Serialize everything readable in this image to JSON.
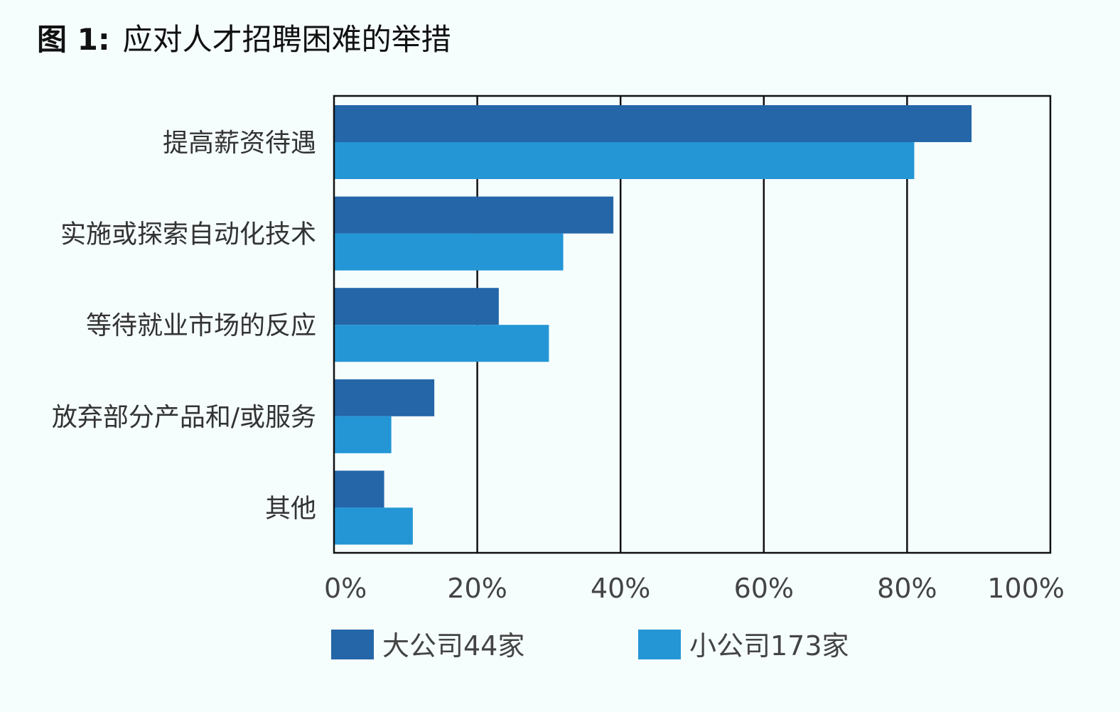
{
  "chart_data": {
    "type": "bar",
    "orientation": "horizontal",
    "title_prefix": "图 1:",
    "title": "应对人才招聘困难的举措",
    "categories": [
      "提高薪资待遇",
      "实施或探索自动化技术",
      "等待就业市场的反应",
      "放弃部分产品和/或服务",
      "其他"
    ],
    "series": [
      {
        "name": "大公司44家",
        "color": "#2466a8",
        "values": [
          89,
          39,
          23,
          14,
          7
        ]
      },
      {
        "name": "小公司173家",
        "color": "#2496d6",
        "values": [
          81,
          32,
          30,
          8,
          11
        ]
      }
    ],
    "xlim": [
      0,
      100
    ],
    "xticks": [
      0,
      20,
      40,
      60,
      80,
      100
    ],
    "xtick_labels": [
      "0%",
      "20%",
      "40%",
      "60%",
      "80%",
      "100%"
    ],
    "grid": true,
    "legend_position": "bottom"
  }
}
